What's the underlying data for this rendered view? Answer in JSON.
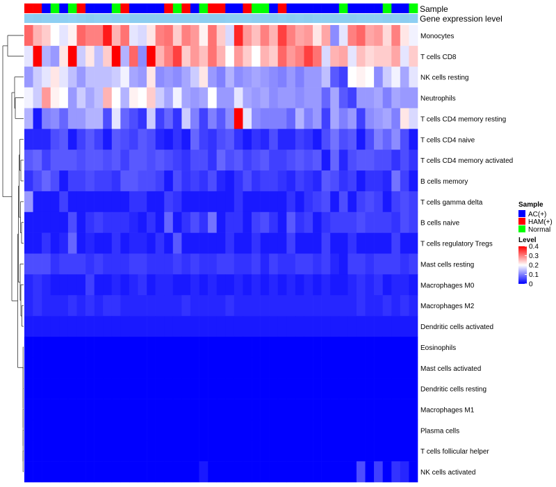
{
  "chart_data": {
    "type": "heatmap",
    "annotation_labels": {
      "sample": "Sample",
      "gene_expression": "Gene expression level"
    },
    "rows": [
      "Monocytes",
      "T cells CD8",
      "NK cells resting",
      "Neutrophils",
      "T cells CD4 memory resting",
      "T cells CD4 naive",
      "T cells CD4 memory activated",
      "B cells memory",
      "T cells gamma delta",
      "B cells naive",
      "T cells regulatory  Tregs",
      "Mast cells resting",
      "Macrophages M0",
      "Macrophages M2",
      "Dendritic cells activated",
      "Eosinophils",
      "Mast cells activated",
      "Dendritic cells resting",
      "Macrophages M1",
      "Plasma cells",
      "T cells follicular helper",
      "NK cells activated"
    ],
    "sample_groups": [
      "HAM(+)",
      "HAM(+)",
      "AC(+)",
      "Normal",
      "AC(+)",
      "Normal",
      "HAM(+)",
      "AC(+)",
      "AC(+)",
      "AC(+)",
      "Normal",
      "HAM(+)",
      "AC(+)",
      "AC(+)",
      "AC(+)",
      "AC(+)",
      "HAM(+)",
      "Normal",
      "HAM(+)",
      "AC(+)",
      "Normal",
      "HAM(+)",
      "HAM(+)",
      "AC(+)",
      "AC(+)",
      "HAM(+)",
      "Normal",
      "Normal",
      "AC(+)",
      "HAM(+)",
      "AC(+)",
      "AC(+)",
      "AC(+)",
      "AC(+)",
      "AC(+)",
      "AC(+)",
      "Normal",
      "AC(+)",
      "AC(+)",
      "AC(+)",
      "AC(+)",
      "Normal",
      "AC(+)",
      "AC(+)",
      "Normal"
    ],
    "values": [
      [
        0.32,
        0.26,
        0.24,
        0.2,
        0.18,
        0.21,
        0.32,
        0.3,
        0.3,
        0.38,
        0.26,
        0.31,
        0.18,
        0.17,
        0.22,
        0.3,
        0.31,
        0.24,
        0.3,
        0.28,
        0.21,
        0.31,
        0.24,
        0.17,
        0.37,
        0.28,
        0.25,
        0.3,
        0.26,
        0.35,
        0.3,
        0.27,
        0.28,
        0.22,
        0.27,
        0.11,
        0.18,
        0.3,
        0.32,
        0.27,
        0.28,
        0.23,
        0.3,
        0.22,
        0.19
      ],
      [
        0.18,
        0.42,
        0.14,
        0.12,
        0.22,
        0.42,
        0.16,
        0.22,
        0.15,
        0.24,
        0.4,
        0.14,
        0.32,
        0.11,
        0.4,
        0.26,
        0.3,
        0.35,
        0.24,
        0.28,
        0.25,
        0.31,
        0.26,
        0.2,
        0.28,
        0.24,
        0.2,
        0.26,
        0.24,
        0.32,
        0.28,
        0.3,
        0.35,
        0.31,
        0.17,
        0.26,
        0.27,
        0.18,
        0.25,
        0.23,
        0.24,
        0.24,
        0.27,
        0.18,
        0.24
      ],
      [
        0.12,
        0.16,
        0.18,
        0.22,
        0.18,
        0.15,
        0.12,
        0.15,
        0.15,
        0.15,
        0.16,
        0.19,
        0.13,
        0.12,
        0.22,
        0.11,
        0.12,
        0.11,
        0.13,
        0.16,
        0.22,
        0.12,
        0.1,
        0.14,
        0.11,
        0.12,
        0.13,
        0.12,
        0.11,
        0.1,
        0.12,
        0.1,
        0.12,
        0.12,
        0.15,
        0.07,
        0.05,
        0.2,
        0.21,
        0.2,
        0.11,
        0.16,
        0.19,
        0.13,
        0.18
      ],
      [
        0.19,
        0.16,
        0.28,
        0.21,
        0.2,
        0.12,
        0.16,
        0.13,
        0.15,
        0.26,
        0.2,
        0.14,
        0.21,
        0.2,
        0.24,
        0.16,
        0.13,
        0.19,
        0.13,
        0.12,
        0.13,
        0.2,
        0.12,
        0.12,
        0.18,
        0.13,
        0.12,
        0.13,
        0.11,
        0.12,
        0.12,
        0.11,
        0.12,
        0.12,
        0.08,
        0.13,
        0.07,
        0.05,
        0.12,
        0.12,
        0.13,
        0.1,
        0.13,
        0.12,
        0.12
      ],
      [
        0.14,
        0.02,
        0.1,
        0.11,
        0.08,
        0.12,
        0.12,
        0.14,
        0.14,
        0.06,
        0.18,
        0.08,
        0.06,
        0.04,
        0.16,
        0.05,
        0.08,
        0.04,
        0.16,
        0.1,
        0.05,
        0.1,
        0.07,
        0.11,
        0.4,
        0.18,
        0.11,
        0.1,
        0.1,
        0.1,
        0.08,
        0.14,
        0.1,
        0.12,
        0.05,
        0.13,
        0.1,
        0.12,
        0.05,
        0.11,
        0.12,
        0.13,
        0.1,
        0.22,
        0.17
      ],
      [
        0.03,
        0.03,
        0.03,
        0.06,
        0.07,
        0.02,
        0.05,
        0.07,
        0.05,
        0.02,
        0.07,
        0.06,
        0.05,
        0.07,
        0.06,
        0.03,
        0.02,
        0.04,
        0.02,
        0.08,
        0.05,
        0.04,
        0.06,
        0.07,
        0.04,
        0.02,
        0.04,
        0.03,
        0.06,
        0.03,
        0.03,
        0.05,
        0.04,
        0.02,
        0.06,
        0.09,
        0.06,
        0.07,
        0.02,
        0.06,
        0.1,
        0.08,
        0.11,
        0.06,
        0.02
      ],
      [
        0.07,
        0.08,
        0.05,
        0.07,
        0.07,
        0.07,
        0.06,
        0.07,
        0.07,
        0.06,
        0.07,
        0.05,
        0.07,
        0.07,
        0.06,
        0.07,
        0.06,
        0.05,
        0.04,
        0.06,
        0.06,
        0.04,
        0.08,
        0.06,
        0.07,
        0.05,
        0.06,
        0.07,
        0.05,
        0.05,
        0.06,
        0.07,
        0.06,
        0.07,
        0.02,
        0.08,
        0.03,
        0.06,
        0.07,
        0.07,
        0.06,
        0.06,
        0.04,
        0.06,
        0.04
      ],
      [
        0.04,
        0.06,
        0.08,
        0.06,
        0.02,
        0.05,
        0.05,
        0.06,
        0.05,
        0.05,
        0.04,
        0.07,
        0.07,
        0.06,
        0.06,
        0.05,
        0.02,
        0.06,
        0.04,
        0.05,
        0.04,
        0.06,
        0.03,
        0.02,
        0.04,
        0.06,
        0.04,
        0.05,
        0.05,
        0.04,
        0.03,
        0.05,
        0.04,
        0.03,
        0.07,
        0.06,
        0.04,
        0.05,
        0.02,
        0.04,
        0.04,
        0.03,
        0.09,
        0.05,
        0.02
      ],
      [
        0.12,
        0.02,
        0.02,
        0.02,
        0.05,
        0.02,
        0.02,
        0.02,
        0.02,
        0.02,
        0.02,
        0.02,
        0.04,
        0.04,
        0.02,
        0.02,
        0.05,
        0.04,
        0.02,
        0.02,
        0.02,
        0.02,
        0.02,
        0.02,
        0.04,
        0.02,
        0.02,
        0.02,
        0.02,
        0.02,
        0.04,
        0.02,
        0.04,
        0.05,
        0.06,
        0.02,
        0.06,
        0.02,
        0.05,
        0.06,
        0.05,
        0.02,
        0.05,
        0.06,
        0.05
      ],
      [
        0.02,
        0.02,
        0.02,
        0.02,
        0.02,
        0.06,
        0.02,
        0.04,
        0.05,
        0.04,
        0.04,
        0.04,
        0.03,
        0.02,
        0.04,
        0.02,
        0.08,
        0.02,
        0.04,
        0.06,
        0.04,
        0.09,
        0.02,
        0.04,
        0.04,
        0.02,
        0.05,
        0.06,
        0.04,
        0.02,
        0.07,
        0.04,
        0.05,
        0.02,
        0.04,
        0.05,
        0.05,
        0.05,
        0.06,
        0.05,
        0.05,
        0.05,
        0.04,
        0.06,
        0.05
      ],
      [
        0.02,
        0.02,
        0.04,
        0.02,
        0.03,
        0.08,
        0.02,
        0.03,
        0.02,
        0.02,
        0.04,
        0.02,
        0.03,
        0.03,
        0.02,
        0.04,
        0.02,
        0.07,
        0.02,
        0.02,
        0.02,
        0.02,
        0.02,
        0.04,
        0.02,
        0.02,
        0.04,
        0.02,
        0.02,
        0.02,
        0.05,
        0.02,
        0.02,
        0.02,
        0.05,
        0.02,
        0.02,
        0.04,
        0.02,
        0.02,
        0.02,
        0.02,
        0.05,
        0.02,
        0.02
      ],
      [
        0.06,
        0.06,
        0.06,
        0.04,
        0.05,
        0.05,
        0.05,
        0.04,
        0.05,
        0.04,
        0.04,
        0.04,
        0.05,
        0.05,
        0.04,
        0.04,
        0.04,
        0.05,
        0.04,
        0.05,
        0.04,
        0.04,
        0.05,
        0.05,
        0.04,
        0.04,
        0.05,
        0.03,
        0.05,
        0.04,
        0.04,
        0.05,
        0.05,
        0.04,
        0.05,
        0.03,
        0.02,
        0.05,
        0.05,
        0.04,
        0.05,
        0.05,
        0.05,
        0.04,
        0.05
      ],
      [
        0.03,
        0.04,
        0.03,
        0.02,
        0.02,
        0.02,
        0.02,
        0.05,
        0.02,
        0.02,
        0.03,
        0.02,
        0.03,
        0.04,
        0.02,
        0.03,
        0.03,
        0.02,
        0.02,
        0.03,
        0.02,
        0.03,
        0.02,
        0.02,
        0.03,
        0.02,
        0.03,
        0.02,
        0.03,
        0.02,
        0.03,
        0.02,
        0.03,
        0.02,
        0.03,
        0.02,
        0.02,
        0.03,
        0.04,
        0.03,
        0.04,
        0.02,
        0.03,
        0.03,
        0.02
      ],
      [
        0.03,
        0.04,
        0.03,
        0.03,
        0.03,
        0.04,
        0.03,
        0.04,
        0.03,
        0.04,
        0.04,
        0.03,
        0.03,
        0.03,
        0.03,
        0.03,
        0.03,
        0.03,
        0.04,
        0.03,
        0.03,
        0.03,
        0.03,
        0.04,
        0.03,
        0.03,
        0.03,
        0.03,
        0.03,
        0.03,
        0.03,
        0.03,
        0.03,
        0.03,
        0.03,
        0.03,
        0.03,
        0.03,
        0.04,
        0.03,
        0.03,
        0.04,
        0.03,
        0.04,
        0.03
      ],
      [
        0.02,
        0.02,
        0.02,
        0.02,
        0.02,
        0.02,
        0.02,
        0.02,
        0.02,
        0.02,
        0.02,
        0.02,
        0.02,
        0.02,
        0.02,
        0.02,
        0.02,
        0.02,
        0.02,
        0.02,
        0.02,
        0.02,
        0.02,
        0.02,
        0.02,
        0.02,
        0.02,
        0.02,
        0.02,
        0.02,
        0.02,
        0.02,
        0.02,
        0.02,
        0.02,
        0.02,
        0.02,
        0.02,
        0.02,
        0.02,
        0.02,
        0.02,
        0.02,
        0.02,
        0.02
      ],
      [
        0.0,
        0.0,
        0.0,
        0.0,
        0.0,
        0.0,
        0.0,
        0.0,
        0.0,
        0.0,
        0.0,
        0.0,
        0.0,
        0.0,
        0.0,
        0.0,
        0.0,
        0.0,
        0.0,
        0.0,
        0.0,
        0.0,
        0.0,
        0.0,
        0.0,
        0.0,
        0.0,
        0.0,
        0.0,
        0.0,
        0.0,
        0.0,
        0.0,
        0.0,
        0.0,
        0.0,
        0.0,
        0.0,
        0.0,
        0.0,
        0.0,
        0.0,
        0.0,
        0.0,
        0.0
      ],
      [
        0.0,
        0.0,
        0.0,
        0.0,
        0.0,
        0.0,
        0.0,
        0.0,
        0.0,
        0.0,
        0.0,
        0.0,
        0.0,
        0.0,
        0.0,
        0.0,
        0.0,
        0.0,
        0.0,
        0.0,
        0.0,
        0.0,
        0.0,
        0.0,
        0.0,
        0.0,
        0.0,
        0.0,
        0.0,
        0.0,
        0.0,
        0.0,
        0.0,
        0.0,
        0.0,
        0.0,
        0.0,
        0.0,
        0.0,
        0.0,
        0.0,
        0.0,
        0.0,
        0.0,
        0.0
      ],
      [
        0.0,
        0.0,
        0.0,
        0.0,
        0.0,
        0.0,
        0.0,
        0.0,
        0.0,
        0.0,
        0.0,
        0.0,
        0.0,
        0.0,
        0.0,
        0.0,
        0.0,
        0.0,
        0.0,
        0.0,
        0.0,
        0.0,
        0.0,
        0.0,
        0.0,
        0.0,
        0.0,
        0.0,
        0.0,
        0.0,
        0.0,
        0.0,
        0.0,
        0.0,
        0.0,
        0.0,
        0.0,
        0.0,
        0.0,
        0.0,
        0.0,
        0.0,
        0.0,
        0.0,
        0.0
      ],
      [
        0.0,
        0.0,
        0.0,
        0.0,
        0.0,
        0.0,
        0.0,
        0.0,
        0.0,
        0.0,
        0.0,
        0.0,
        0.0,
        0.0,
        0.0,
        0.0,
        0.0,
        0.0,
        0.0,
        0.0,
        0.0,
        0.0,
        0.0,
        0.0,
        0.0,
        0.0,
        0.0,
        0.0,
        0.0,
        0.0,
        0.0,
        0.0,
        0.0,
        0.0,
        0.0,
        0.0,
        0.0,
        0.0,
        0.0,
        0.0,
        0.0,
        0.0,
        0.0,
        0.0,
        0.0
      ],
      [
        0.0,
        0.0,
        0.0,
        0.0,
        0.0,
        0.0,
        0.0,
        0.0,
        0.0,
        0.0,
        0.0,
        0.0,
        0.0,
        0.0,
        0.0,
        0.0,
        0.0,
        0.0,
        0.0,
        0.0,
        0.0,
        0.0,
        0.0,
        0.0,
        0.0,
        0.0,
        0.0,
        0.0,
        0.0,
        0.0,
        0.0,
        0.0,
        0.0,
        0.0,
        0.0,
        0.0,
        0.0,
        0.0,
        0.0,
        0.0,
        0.0,
        0.0,
        0.0,
        0.0,
        0.0
      ],
      [
        0.0,
        0.0,
        0.0,
        0.0,
        0.0,
        0.0,
        0.0,
        0.0,
        0.0,
        0.0,
        0.0,
        0.0,
        0.0,
        0.0,
        0.0,
        0.0,
        0.0,
        0.0,
        0.0,
        0.0,
        0.0,
        0.0,
        0.0,
        0.0,
        0.0,
        0.0,
        0.0,
        0.0,
        0.0,
        0.0,
        0.0,
        0.0,
        0.0,
        0.0,
        0.0,
        0.0,
        0.0,
        0.0,
        0.0,
        0.0,
        0.0,
        0.0,
        0.0,
        0.0,
        0.0
      ],
      [
        0.0,
        0.0,
        0.0,
        0.0,
        0.0,
        0.0,
        0.0,
        0.0,
        0.0,
        0.0,
        0.0,
        0.0,
        0.0,
        0.0,
        0.0,
        0.0,
        0.0,
        0.0,
        0.0,
        0.0,
        0.02,
        0.0,
        0.0,
        0.0,
        0.0,
        0.0,
        0.0,
        0.0,
        0.0,
        0.0,
        0.0,
        0.0,
        0.0,
        0.0,
        0.0,
        0.0,
        0.0,
        0.0,
        0.06,
        0.0,
        0.05,
        0.0,
        0.04,
        0.03,
        0.0
      ]
    ],
    "gene_expression_values": [
      0.21,
      0.2,
      0.21,
      0.21,
      0.21,
      0.22,
      0.21,
      0.2,
      0.21,
      0.21,
      0.2,
      0.21,
      0.2,
      0.2,
      0.2,
      0.2,
      0.2,
      0.2,
      0.2,
      0.21,
      0.2,
      0.2,
      0.2,
      0.21,
      0.21,
      0.21,
      0.2,
      0.2,
      0.2,
      0.21,
      0.2,
      0.21,
      0.2,
      0.21,
      0.21,
      0.2,
      0.2,
      0.2,
      0.21,
      0.21,
      0.21,
      0.2,
      0.21,
      0.2,
      0.21
    ],
    "legend": {
      "sample_title": "Sample",
      "sample_items": [
        {
          "label": "AC(+)",
          "color": "#0000ff"
        },
        {
          "label": "HAM(+)",
          "color": "#ff0000"
        },
        {
          "label": "Normal",
          "color": "#00ff00"
        }
      ],
      "level_title": "Level",
      "level_ticks": [
        "0.4",
        "0.3",
        "0.2",
        "0.1",
        "0"
      ],
      "level_tick_values": [
        0.4,
        0.3,
        0.2,
        0.1,
        0
      ],
      "level_range": [
        0,
        0.4
      ]
    },
    "colors": {
      "low": "#0000ff",
      "mid": "#ffffff",
      "high": "#ff0000",
      "annotation_bar": "#87cdee"
    }
  }
}
